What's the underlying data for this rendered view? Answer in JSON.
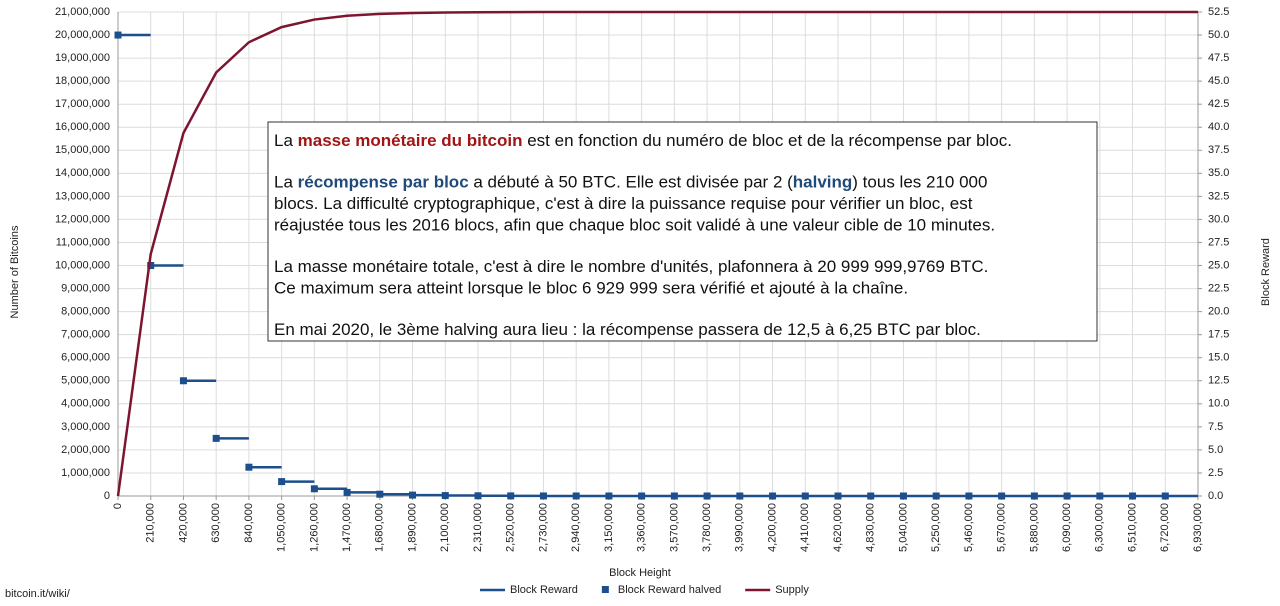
{
  "chart_data": {
    "type": "line",
    "xlabel": "Block Height",
    "ylabel": "Number of Bitcoins",
    "y2label": "Block Reward",
    "source": "bitcoin.it/wiki/",
    "grid": true,
    "legend": "bottom",
    "xlim": [
      0,
      6930000
    ],
    "ylim": [
      0,
      21000000
    ],
    "y2lim": [
      0,
      52.5
    ],
    "xticks": [
      0,
      {
        "value": 210000,
        "label": "210,000"
      },
      {
        "value": 420000,
        "label": "420,000"
      },
      {
        "value": 630000,
        "label": "630,000"
      },
      {
        "value": 840000,
        "label": "840,000"
      },
      {
        "value": 1050000,
        "label": "1,050,000"
      },
      {
        "value": 1260000,
        "label": "1,260,000"
      },
      {
        "value": 1470000,
        "label": "1,470,000"
      },
      {
        "value": 1680000,
        "label": "1,680,000"
      },
      {
        "value": 1890000,
        "label": "1,890,000"
      },
      {
        "value": 2100000,
        "label": "2,100,000"
      },
      {
        "value": 2310000,
        "label": "2,310,000"
      },
      {
        "value": 2520000,
        "label": "2,520,000"
      },
      {
        "value": 2730000,
        "label": "2,730,000"
      },
      {
        "value": 2940000,
        "label": "2,940,000"
      },
      {
        "value": 3150000,
        "label": "3,150,000"
      },
      {
        "value": 3360000,
        "label": "3,360,000"
      },
      {
        "value": 3570000,
        "label": "3,570,000"
      },
      {
        "value": 3780000,
        "label": "3,780,000"
      },
      {
        "value": 3990000,
        "label": "3,990,000"
      },
      {
        "value": 4200000,
        "label": "4,200,000"
      },
      {
        "value": 4410000,
        "label": "4,410,000"
      },
      {
        "value": 4620000,
        "label": "4,620,000"
      },
      {
        "value": 4830000,
        "label": "4,830,000"
      },
      {
        "value": 5040000,
        "label": "5,040,000"
      },
      {
        "value": 5250000,
        "label": "5,250,000"
      },
      {
        "value": 5460000,
        "label": "5,460,000"
      },
      {
        "value": 5670000,
        "label": "5,670,000"
      },
      {
        "value": 5880000,
        "label": "5,880,000"
      },
      {
        "value": 6090000,
        "label": "6,090,000"
      },
      {
        "value": 6300000,
        "label": "6,300,000"
      },
      {
        "value": 6510000,
        "label": "6,510,000"
      },
      {
        "value": 6720000,
        "label": "6,720,000"
      },
      {
        "value": 6930000,
        "label": "6,930,000"
      }
    ],
    "yticks": [
      0,
      {
        "value": 1000000,
        "label": "1,000,000"
      },
      {
        "value": 2000000,
        "label": "2,000,000"
      },
      {
        "value": 3000000,
        "label": "3,000,000"
      },
      {
        "value": 4000000,
        "label": "4,000,000"
      },
      {
        "value": 5000000,
        "label": "5,000,000"
      },
      {
        "value": 6000000,
        "label": "6,000,000"
      },
      {
        "value": 7000000,
        "label": "7,000,000"
      },
      {
        "value": 8000000,
        "label": "8,000,000"
      },
      {
        "value": 9000000,
        "label": "9,000,000"
      },
      {
        "value": 10000000,
        "label": "10,000,000"
      },
      {
        "value": 11000000,
        "label": "11,000,000"
      },
      {
        "value": 12000000,
        "label": "12,000,000"
      },
      {
        "value": 13000000,
        "label": "13,000,000"
      },
      {
        "value": 14000000,
        "label": "14,000,000"
      },
      {
        "value": 15000000,
        "label": "15,000,000"
      },
      {
        "value": 16000000,
        "label": "16,000,000"
      },
      {
        "value": 17000000,
        "label": "17,000,000"
      },
      {
        "value": 18000000,
        "label": "18,000,000"
      },
      {
        "value": 19000000,
        "label": "19,000,000"
      },
      {
        "value": 20000000,
        "label": "20,000,000"
      },
      {
        "value": 21000000,
        "label": "21,000,000"
      }
    ],
    "y2ticks": [
      {
        "value": 0,
        "label": "0.0"
      },
      2.5,
      {
        "value": 5,
        "label": "5.0"
      },
      7.5,
      {
        "value": 10,
        "label": "10.0"
      },
      12.5,
      {
        "value": 15,
        "label": "15.0"
      },
      17.5,
      {
        "value": 20,
        "label": "20.0"
      },
      22.5,
      {
        "value": 25,
        "label": "25.0"
      },
      27.5,
      {
        "value": 30,
        "label": "30.0"
      },
      32.5,
      {
        "value": 35,
        "label": "35.0"
      },
      37.5,
      {
        "value": 40,
        "label": "40.0"
      },
      42.5,
      {
        "value": 45,
        "label": "45.0"
      },
      47.5,
      {
        "value": 50,
        "label": "50.0"
      },
      52.5
    ],
    "series": [
      {
        "name": "Block Reward",
        "type": "step",
        "axis": "y2",
        "color": "#1d4f8c",
        "x": [
          0,
          210000,
          420000,
          630000,
          840000,
          1050000,
          1260000,
          1470000,
          1680000,
          1890000,
          2100000,
          2310000,
          2520000,
          2730000,
          2940000,
          3150000,
          3360000,
          3570000,
          3780000,
          3990000,
          4200000,
          4410000,
          4620000,
          4830000,
          5040000,
          5250000,
          5460000,
          5670000,
          5880000,
          6090000,
          6300000,
          6510000,
          6720000
        ],
        "values": [
          50,
          25,
          12.5,
          6.25,
          3.125,
          1.5625,
          0.78125,
          0.390625,
          0.1953125,
          0.0977,
          0.0488,
          0.0244,
          0.0122,
          0.0061,
          0.0031,
          0.0015,
          0.0008,
          0.0004,
          0.0002,
          0.0001,
          0,
          0,
          0,
          0,
          0,
          0,
          0,
          0,
          0,
          0,
          0,
          0,
          0
        ]
      },
      {
        "name": "Block Reward halved",
        "type": "scatter",
        "axis": "y2",
        "color": "#1d4f8c",
        "x": [
          0,
          210000,
          420000,
          630000,
          840000,
          1050000,
          1260000,
          1470000,
          1680000,
          1890000,
          2100000,
          2310000,
          2520000,
          2730000,
          2940000,
          3150000,
          3360000,
          3570000,
          3780000,
          3990000,
          4200000,
          4410000,
          4620000,
          4830000,
          5040000,
          5250000,
          5460000,
          5670000,
          5880000,
          6090000,
          6300000,
          6510000,
          6720000
        ],
        "values": [
          50,
          25,
          12.5,
          6.25,
          3.125,
          1.5625,
          0.78125,
          0.390625,
          0.1953125,
          0.0977,
          0.0488,
          0.0244,
          0.0122,
          0.0061,
          0.0031,
          0.0015,
          0.0008,
          0.0004,
          0.0002,
          0.0001,
          0,
          0,
          0,
          0,
          0,
          0,
          0,
          0,
          0,
          0,
          0,
          0,
          0
        ]
      },
      {
        "name": "Supply",
        "type": "line",
        "color": "#7d1530",
        "x": [
          0,
          210000,
          420000,
          630000,
          840000,
          1050000,
          1260000,
          1470000,
          1680000,
          1890000,
          2100000,
          2310000,
          2520000,
          2730000,
          2940000,
          3150000,
          3360000,
          3570000,
          3780000,
          3990000,
          4200000,
          4410000,
          4620000,
          4830000,
          5040000,
          5250000,
          5460000,
          5670000,
          5880000,
          6090000,
          6300000,
          6510000,
          6720000,
          6930000
        ],
        "values": [
          0,
          10500000,
          15750000,
          18375000,
          19687500,
          20343750,
          20671875,
          20835938,
          20917969,
          20958984,
          20979492,
          20989746,
          20994873,
          20997437,
          20998718,
          20999359,
          20999680,
          21000000,
          21000000,
          21000000,
          21000000,
          21000000,
          21000000,
          21000000,
          21000000,
          21000000,
          21000000,
          21000000,
          21000000,
          21000000,
          21000000,
          21000000,
          21000000,
          21000000
        ]
      }
    ],
    "annotation": {
      "paragraphs": [
        [
          [
            "La ",
            {
              "text": "masse monétaire du bitcoin",
              "color": "#a31515"
            },
            " est en fonction du numéro de bloc et de la récompense par bloc."
          ]
        ],
        [
          [
            "La ",
            {
              "text": "récompense par bloc",
              "color": "#1f4a7a"
            },
            " a débuté à 50 BTC. Elle est divisée par 2 (",
            {
              "text": "halving",
              "color": "#1f4a7a"
            },
            ") tous les 210 000"
          ],
          [
            "blocs. La difficulté cryptographique, c'est à dire la puissance requise pour vérifier un bloc, est"
          ],
          [
            "réajustée tous les 2016 blocs, afin que chaque bloc soit validé à une valeur cible de 10 minutes."
          ]
        ],
        [
          [
            "La masse monétaire totale, c'est à dire le nombre d'unités, plafonnera à 20 999 999,9769 BTC."
          ],
          [
            "Ce maximum sera atteint lorsque le bloc 6 929 999 sera vérifié et ajouté à la chaîne."
          ]
        ],
        [
          [
            "En mai 2020, le 3ème halving aura lieu : la récompense passera de 12,5 à 6,25 BTC par bloc."
          ]
        ]
      ]
    }
  }
}
